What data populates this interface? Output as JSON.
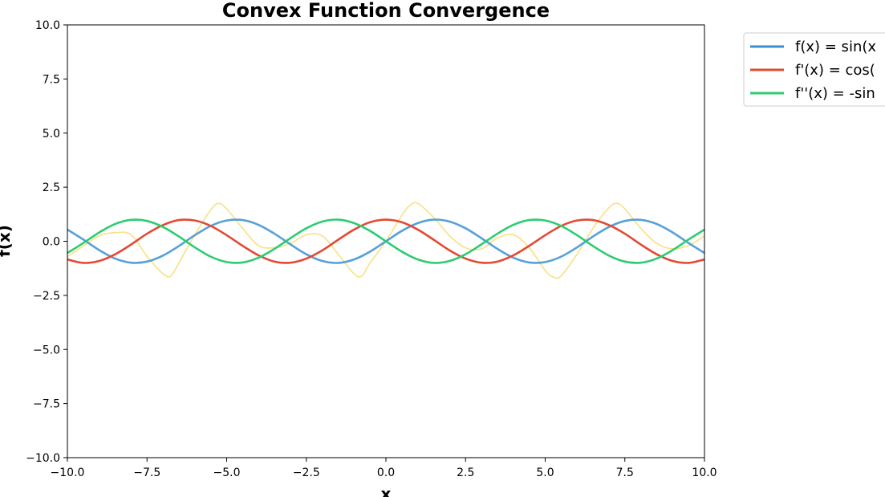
{
  "chart_data": {
    "type": "line",
    "title": "Convex Function Convergence",
    "xlabel": "x",
    "ylabel": "f(x)",
    "xlim": [
      -10,
      10
    ],
    "ylim": [
      -10,
      10
    ],
    "x_ticks": [
      -10,
      -7.5,
      -5,
      -2.5,
      0,
      2.5,
      5,
      7.5,
      10
    ],
    "x_tick_labels": [
      "−10.0",
      "−7.5",
      "−5.0",
      "−2.5",
      "0.0",
      "2.5",
      "5.0",
      "7.5",
      "10.0"
    ],
    "y_ticks": [
      -10,
      -7.5,
      -5,
      -2.5,
      0,
      2.5,
      5,
      7.5,
      10
    ],
    "y_tick_labels": [
      "−10.0",
      "−7.5",
      "−5.0",
      "−2.5",
      "0.0",
      "2.5",
      "5.0",
      "7.5",
      "10.0"
    ],
    "grid": false,
    "legend_placement": "outside-top-right",
    "series": [
      {
        "name": "f(x) = sin(x",
        "color": "#3a8fd1",
        "points": [
          [
            -10,
            0.54
          ],
          [
            -9.5,
            0.08
          ],
          [
            -9,
            -0.41
          ],
          [
            -8.5,
            -0.8
          ],
          [
            -8,
            -0.99
          ],
          [
            -7.5,
            -0.94
          ],
          [
            -7,
            -0.66
          ],
          [
            -6.5,
            -0.22
          ],
          [
            -6,
            0.28
          ],
          [
            -5.5,
            0.71
          ],
          [
            -5,
            0.96
          ],
          [
            -4.5,
            0.98
          ],
          [
            -4,
            0.76
          ],
          [
            -3.5,
            0.35
          ],
          [
            -3,
            -0.14
          ],
          [
            -2.5,
            -0.6
          ],
          [
            -2,
            -0.91
          ],
          [
            -1.5,
            -1.0
          ],
          [
            -1,
            -0.84
          ],
          [
            -0.5,
            -0.48
          ],
          [
            0,
            0
          ],
          [
            0.5,
            0.48
          ],
          [
            1,
            0.84
          ],
          [
            1.5,
            1.0
          ],
          [
            2,
            0.91
          ],
          [
            2.5,
            0.6
          ],
          [
            3,
            0.14
          ],
          [
            3.5,
            -0.35
          ],
          [
            4,
            -0.76
          ],
          [
            4.5,
            -0.98
          ],
          [
            5,
            -0.96
          ],
          [
            5.5,
            -0.71
          ],
          [
            6,
            -0.28
          ],
          [
            6.5,
            0.22
          ],
          [
            7,
            0.66
          ],
          [
            7.5,
            0.94
          ],
          [
            8,
            0.99
          ],
          [
            8.5,
            0.8
          ],
          [
            9,
            0.41
          ],
          [
            9.5,
            -0.08
          ],
          [
            10,
            -0.54
          ]
        ]
      },
      {
        "name": "f'(x) = cos(",
        "color": "#e34a33",
        "points": [
          [
            -10,
            -0.84
          ],
          [
            -9.5,
            -1.0
          ],
          [
            -9,
            -0.91
          ],
          [
            -8.5,
            -0.6
          ],
          [
            -8,
            -0.15
          ],
          [
            -7.5,
            0.35
          ],
          [
            -7,
            0.75
          ],
          [
            -6.5,
            0.98
          ],
          [
            -6,
            0.96
          ],
          [
            -5.5,
            0.71
          ],
          [
            -5,
            0.28
          ],
          [
            -4.5,
            -0.21
          ],
          [
            -4,
            -0.65
          ],
          [
            -3.5,
            -0.94
          ],
          [
            -3,
            -0.99
          ],
          [
            -2.5,
            -0.8
          ],
          [
            -2,
            -0.42
          ],
          [
            -1.5,
            0.07
          ],
          [
            -1,
            0.54
          ],
          [
            -0.5,
            0.88
          ],
          [
            0,
            1.0
          ],
          [
            0.5,
            0.88
          ],
          [
            1,
            0.54
          ],
          [
            1.5,
            0.07
          ],
          [
            2,
            -0.42
          ],
          [
            2.5,
            -0.8
          ],
          [
            3,
            -0.99
          ],
          [
            3.5,
            -0.94
          ],
          [
            4,
            -0.65
          ],
          [
            4.5,
            -0.21
          ],
          [
            5,
            0.28
          ],
          [
            5.5,
            0.71
          ],
          [
            6,
            0.96
          ],
          [
            6.5,
            0.98
          ],
          [
            7,
            0.75
          ],
          [
            7.5,
            0.35
          ],
          [
            8,
            -0.15
          ],
          [
            8.5,
            -0.6
          ],
          [
            9,
            -0.91
          ],
          [
            9.5,
            -1.0
          ],
          [
            10,
            -0.84
          ]
        ]
      },
      {
        "name": "f''(x) = -sin",
        "color": "#2ecc71",
        "points": [
          [
            -10,
            -0.54
          ],
          [
            -9.5,
            -0.08
          ],
          [
            -9,
            0.41
          ],
          [
            -8.5,
            0.8
          ],
          [
            -8,
            0.99
          ],
          [
            -7.5,
            0.94
          ],
          [
            -7,
            0.66
          ],
          [
            -6.5,
            0.22
          ],
          [
            -6,
            -0.28
          ],
          [
            -5.5,
            -0.71
          ],
          [
            -5,
            -0.96
          ],
          [
            -4.5,
            -0.98
          ],
          [
            -4,
            -0.76
          ],
          [
            -3.5,
            -0.35
          ],
          [
            -3,
            0.14
          ],
          [
            -2.5,
            0.6
          ],
          [
            -2,
            0.91
          ],
          [
            -1.5,
            1.0
          ],
          [
            -1,
            0.84
          ],
          [
            -0.5,
            0.48
          ],
          [
            0,
            0
          ],
          [
            0.5,
            -0.48
          ],
          [
            1,
            -0.84
          ],
          [
            1.5,
            -1.0
          ],
          [
            2,
            -0.91
          ],
          [
            2.5,
            -0.6
          ],
          [
            3,
            -0.14
          ],
          [
            3.5,
            0.35
          ],
          [
            4,
            0.76
          ],
          [
            4.5,
            0.98
          ],
          [
            5,
            0.96
          ],
          [
            5.5,
            0.71
          ],
          [
            6,
            0.28
          ],
          [
            6.5,
            -0.22
          ],
          [
            7,
            -0.66
          ],
          [
            7.5,
            -0.94
          ],
          [
            8,
            -0.99
          ],
          [
            8.5,
            -0.8
          ],
          [
            9,
            -0.41
          ],
          [
            9.5,
            0.08
          ],
          [
            10,
            0.54
          ]
        ]
      },
      {
        "name": "",
        "color": "#f7dc6f",
        "points": [
          [
            -10,
            -0.71
          ],
          [
            -9.5,
            -0.22
          ],
          [
            -9,
            0.25
          ],
          [
            -8.5,
            0.4
          ],
          [
            -8,
            0.3
          ],
          [
            -7.5,
            -0.7
          ],
          [
            -7,
            -1.5
          ],
          [
            -6.75,
            -1.6
          ],
          [
            -6.5,
            -1.0
          ],
          [
            -6,
            0.3
          ],
          [
            -5.5,
            1.45
          ],
          [
            -5.25,
            1.75
          ],
          [
            -5,
            1.5
          ],
          [
            -4.5,
            0.6
          ],
          [
            -4,
            -0.2
          ],
          [
            -3.5,
            -0.3
          ],
          [
            -3,
            -0.1
          ],
          [
            -2.5,
            0.3
          ],
          [
            -2,
            0.25
          ],
          [
            -1.5,
            -0.6
          ],
          [
            -1,
            -1.5
          ],
          [
            -0.75,
            -1.6
          ],
          [
            -0.5,
            -1.0
          ],
          [
            0,
            0
          ],
          [
            0.5,
            1.2
          ],
          [
            0.75,
            1.65
          ],
          [
            1,
            1.75
          ],
          [
            1.5,
            1.1
          ],
          [
            2,
            0.25
          ],
          [
            2.5,
            -0.3
          ],
          [
            3,
            -0.35
          ],
          [
            3.5,
            0.15
          ],
          [
            4,
            0.3
          ],
          [
            4.5,
            -0.3
          ],
          [
            5,
            -1.35
          ],
          [
            5.25,
            -1.65
          ],
          [
            5.5,
            -1.6
          ],
          [
            6,
            -0.6
          ],
          [
            6.5,
            0.6
          ],
          [
            7,
            1.55
          ],
          [
            7.25,
            1.75
          ],
          [
            7.5,
            1.5
          ],
          [
            8,
            0.6
          ],
          [
            8.5,
            -0.1
          ],
          [
            9,
            -0.35
          ],
          [
            9.5,
            -0.2
          ],
          [
            10,
            0.25
          ]
        ]
      }
    ]
  }
}
